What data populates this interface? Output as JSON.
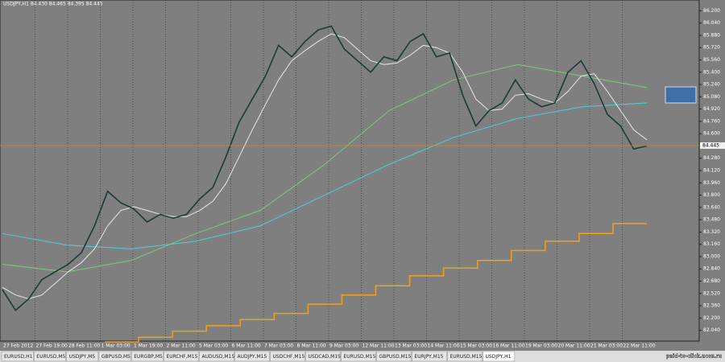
{
  "header": {
    "text": "USDJPY,H1  84.430 84.465 84.395 84.445"
  },
  "chart_data": {
    "type": "line",
    "ylim": [
      81.9,
      86.34
    ],
    "yticks": [
      {
        "value": 82.04,
        "label": "82.040"
      },
      {
        "value": 82.2,
        "label": "82.200"
      },
      {
        "value": 82.36,
        "label": "82.360"
      },
      {
        "value": 82.52,
        "label": "82.520"
      },
      {
        "value": 82.68,
        "label": "82.680"
      },
      {
        "value": 82.84,
        "label": "82.840"
      },
      {
        "value": 83.0,
        "label": "83.000"
      },
      {
        "value": 83.16,
        "label": "83.160"
      },
      {
        "value": 83.32,
        "label": "83.320"
      },
      {
        "value": 83.48,
        "label": "83.480"
      },
      {
        "value": 83.64,
        "label": "83.640"
      },
      {
        "value": 83.8,
        "label": "83.800"
      },
      {
        "value": 83.96,
        "label": "83.960"
      },
      {
        "value": 84.12,
        "label": "84.120"
      },
      {
        "value": 84.28,
        "label": "84.280"
      },
      {
        "value": 84.6,
        "label": "84.600"
      },
      {
        "value": 84.76,
        "label": "84.760"
      },
      {
        "value": 84.92,
        "label": "84.920"
      },
      {
        "value": 85.08,
        "label": "85.080"
      },
      {
        "value": 85.24,
        "label": "85.240"
      },
      {
        "value": 85.4,
        "label": "85.400"
      },
      {
        "value": 85.56,
        "label": "85.560"
      },
      {
        "value": 85.72,
        "label": "85.720"
      },
      {
        "value": 85.88,
        "label": "85.880"
      },
      {
        "value": 86.04,
        "label": "86.040"
      },
      {
        "value": 86.2,
        "label": "86.200"
      }
    ],
    "current_price": {
      "value": 84.445,
      "label": "84.445"
    },
    "x_labels": [
      "27 Feb 2012",
      "27 Feb 19:00",
      "28 Feb 11:00",
      "1 Mar 03:00",
      "1 Mar 19:00",
      "2 Mar 11:00",
      "5 Mar 03:00",
      "6 Mar 11:00",
      "7 Mar 03:00",
      "8 Mar 11:00",
      "9 Mar 03:00",
      "12 Mar 11:00",
      "13 Mar 03:00",
      "14 Mar 11:00",
      "15 Mar 03:00",
      "16 Mar 11:00",
      "19 Mar 03:00",
      "20 Mar 11:00",
      "21 Mar 03:00",
      "22 Mar 11:00"
    ],
    "grid": true,
    "series": [
      {
        "color": "#1c3a38",
        "values": [
          82.57,
          82.3,
          82.45,
          82.7,
          82.8,
          82.9,
          83.05,
          83.4,
          83.85,
          83.7,
          83.62,
          83.45,
          83.55,
          83.5,
          83.55,
          83.75,
          83.9,
          84.3,
          84.75,
          85.05,
          85.35,
          85.75,
          85.6,
          85.8,
          85.95,
          86.0,
          85.7,
          85.55,
          85.4,
          85.6,
          85.55,
          85.8,
          85.9,
          85.6,
          85.65,
          85.1,
          84.7,
          84.9,
          85.0,
          85.3,
          85.05,
          84.95,
          85.0,
          85.4,
          85.55,
          85.25,
          84.85,
          84.7,
          84.4,
          84.44
        ]
      },
      {
        "color": "#e8e8e8",
        "values": [
          82.6,
          82.5,
          82.45,
          82.5,
          82.65,
          82.8,
          82.92,
          83.1,
          83.4,
          83.6,
          83.65,
          83.6,
          83.55,
          83.52,
          83.52,
          83.6,
          83.72,
          83.95,
          84.3,
          84.65,
          84.98,
          85.3,
          85.55,
          85.68,
          85.8,
          85.9,
          85.85,
          85.7,
          85.55,
          85.5,
          85.52,
          85.62,
          85.75,
          85.72,
          85.65,
          85.4,
          85.05,
          84.9,
          84.92,
          85.1,
          85.12,
          85.05,
          85.0,
          85.15,
          85.35,
          85.38,
          85.15,
          84.9,
          84.65,
          84.52
        ]
      },
      {
        "color": "#7fc97f",
        "values": [
          82.9,
          82.8,
          82.95,
          83.3,
          83.6,
          84.2,
          84.9,
          85.3,
          85.5,
          85.35,
          85.2
        ]
      },
      {
        "color": "#4fd0d8",
        "values": [
          83.3,
          83.15,
          83.1,
          83.2,
          83.4,
          83.8,
          84.2,
          84.55,
          84.8,
          84.95,
          85.0
        ]
      }
    ],
    "steps": {
      "color": "#f0a020",
      "values": [
        81.89,
        81.95,
        82.03,
        82.1,
        82.18,
        82.26,
        82.38,
        82.5,
        82.62,
        82.75,
        82.85,
        82.95,
        83.08,
        83.2,
        83.3,
        83.43
      ]
    }
  },
  "tabs": [
    "EURUSD,H1",
    "EURUSD,M5",
    "USDJPY,M5",
    "GBPUSD,M5",
    "EURGBP,M5",
    "EURCHF,M15",
    "AUDUSD,M15",
    "AUDJPY,M15",
    "USDCHF,M15",
    "USDCAD,M15",
    "EURUSD,M15",
    "GBPUSD,M15",
    "EURJPY,M15",
    "EURUSD,M15",
    "USDJPY,H1"
  ],
  "watermark": "paid-to-click.ucoz.ru"
}
